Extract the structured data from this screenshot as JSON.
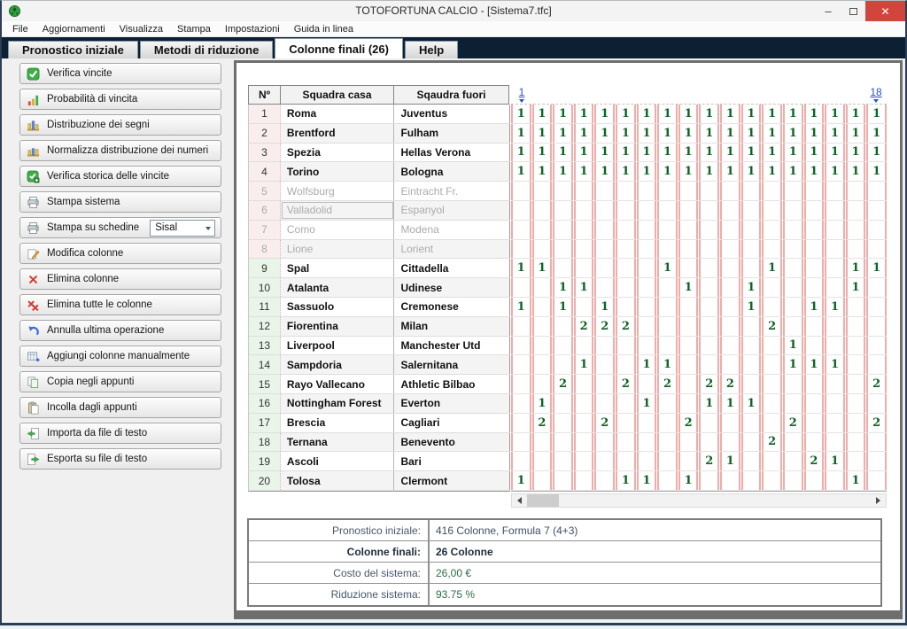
{
  "window": {
    "title": "TOTOFORTUNA CALCIO - [Sistema7.tfc]",
    "controls": {
      "minimize": "–",
      "close": "✕"
    }
  },
  "menu": {
    "items": [
      "File",
      "Aggiornamenti",
      "Visualizza",
      "Stampa",
      "Impostazioni",
      "Guida in linea"
    ]
  },
  "tabs": [
    {
      "label": "Pronostico iniziale",
      "active": false
    },
    {
      "label": "Metodi di riduzione",
      "active": false
    },
    {
      "label": "Colonne finali (26)",
      "active": true
    },
    {
      "label": "Help",
      "active": false
    }
  ],
  "sidebar": {
    "buttons": [
      {
        "label": "Verifica vincite",
        "icon": "check-icon"
      },
      {
        "label": "Probabilità di vincita",
        "icon": "bar-chart-icon"
      },
      {
        "label": "Distribuzione dei segni",
        "icon": "distribution-chart-icon"
      },
      {
        "label": "Normalizza distribuzione dei numeri",
        "icon": "normalize-chart-icon"
      },
      {
        "label": "Verifica storica delle vincite",
        "icon": "historic-check-icon"
      },
      {
        "label": "Stampa sistema",
        "icon": "printer-icon"
      },
      {
        "label": "Stampa su schedine",
        "icon": "printer-icon",
        "combo": "Sisal"
      },
      {
        "label": "Modifica colonne",
        "icon": "edit-icon"
      },
      {
        "label": "Elimina colonne",
        "icon": "delete-icon"
      },
      {
        "label": "Elimina tutte le colonne",
        "icon": "delete-all-icon"
      },
      {
        "label": "Annulla ultima operazione",
        "icon": "undo-icon"
      },
      {
        "label": "Aggiungi colonne manualmente",
        "icon": "add-columns-icon"
      },
      {
        "label": "Copia negli appunti",
        "icon": "copy-icon"
      },
      {
        "label": "Incolla dagli appunti",
        "icon": "paste-icon"
      },
      {
        "label": "Importa da file di testo",
        "icon": "import-icon"
      },
      {
        "label": "Esporta su file di testo",
        "icon": "export-icon"
      }
    ]
  },
  "table": {
    "headers": {
      "num": "Nº",
      "home": "Squadra casa",
      "away": "Sqaudra fuori"
    },
    "col_first": "1",
    "col_last": "18",
    "rows": [
      {
        "num": "1",
        "home": "Roma",
        "away": "Juventus",
        "dimmed": false,
        "zone": "pink",
        "cells": [
          "1",
          "1",
          "1",
          "1",
          "1",
          "1",
          "1",
          "1",
          "1",
          "1",
          "1",
          "1",
          "1",
          "1",
          "1",
          "1",
          "1",
          "1"
        ]
      },
      {
        "num": "2",
        "home": "Brentford",
        "away": "Fulham",
        "dimmed": false,
        "zone": "pink",
        "cells": [
          "1",
          "1",
          "1",
          "1",
          "1",
          "1",
          "1",
          "1",
          "1",
          "1",
          "1",
          "1",
          "1",
          "1",
          "1",
          "1",
          "1",
          "1"
        ]
      },
      {
        "num": "3",
        "home": "Spezia",
        "away": "Hellas Verona",
        "dimmed": false,
        "zone": "pink",
        "cells": [
          "1",
          "1",
          "1",
          "1",
          "1",
          "1",
          "1",
          "1",
          "1",
          "1",
          "1",
          "1",
          "1",
          "1",
          "1",
          "1",
          "1",
          "1"
        ]
      },
      {
        "num": "4",
        "home": "Torino",
        "away": "Bologna",
        "dimmed": false,
        "zone": "pink",
        "cells": [
          "1",
          "1",
          "1",
          "1",
          "1",
          "1",
          "1",
          "1",
          "1",
          "1",
          "1",
          "1",
          "1",
          "1",
          "1",
          "1",
          "1",
          "1"
        ]
      },
      {
        "num": "5",
        "home": "Wolfsburg",
        "away": "Eintracht Fr.",
        "dimmed": true,
        "zone": "pink",
        "cells": [
          "",
          "",
          "",
          "",
          "",
          "",
          "",
          "",
          "",
          "",
          "",
          "",
          "",
          "",
          "",
          "",
          "",
          ""
        ]
      },
      {
        "num": "6",
        "home": "Valladolid",
        "away": "Espanyol",
        "dimmed": true,
        "zone": "pink",
        "focused": true,
        "cells": [
          "",
          "",
          "",
          "",
          "",
          "",
          "",
          "",
          "",
          "",
          "",
          "",
          "",
          "",
          "",
          "",
          "",
          ""
        ]
      },
      {
        "num": "7",
        "home": "Como",
        "away": "Modena",
        "dimmed": true,
        "zone": "pink",
        "cells": [
          "",
          "",
          "",
          "",
          "",
          "",
          "",
          "",
          "",
          "",
          "",
          "",
          "",
          "",
          "",
          "",
          "",
          ""
        ]
      },
      {
        "num": "8",
        "home": "Lione",
        "away": "Lorient",
        "dimmed": true,
        "zone": "pink",
        "cells": [
          "",
          "",
          "",
          "",
          "",
          "",
          "",
          "",
          "",
          "",
          "",
          "",
          "",
          "",
          "",
          "",
          "",
          ""
        ]
      },
      {
        "num": "9",
        "home": "Spal",
        "away": "Cittadella",
        "dimmed": false,
        "zone": "green",
        "cells": [
          "1",
          "1",
          "",
          "",
          "",
          "",
          "",
          "1",
          "",
          "",
          "",
          "",
          "1",
          "",
          "",
          "",
          "1",
          "1"
        ]
      },
      {
        "num": "10",
        "home": "Atalanta",
        "away": "Udinese",
        "dimmed": false,
        "zone": "green",
        "cells": [
          "",
          "",
          "1",
          "1",
          "",
          "",
          "",
          "",
          "1",
          "",
          "",
          "1",
          "",
          "",
          "",
          "",
          "1",
          ""
        ]
      },
      {
        "num": "11",
        "home": "Sassuolo",
        "away": "Cremonese",
        "dimmed": false,
        "zone": "green",
        "cells": [
          "1",
          "",
          "1",
          "",
          "1",
          "",
          "",
          "",
          "",
          "",
          "",
          "1",
          "",
          "",
          "1",
          "1",
          "",
          ""
        ]
      },
      {
        "num": "12",
        "home": "Fiorentina",
        "away": "Milan",
        "dimmed": false,
        "zone": "green",
        "cells": [
          "",
          "",
          "",
          "2",
          "2",
          "2",
          "",
          "",
          "",
          "",
          "",
          "",
          "2",
          "",
          "",
          "",
          "",
          ""
        ]
      },
      {
        "num": "13",
        "home": "Liverpool",
        "away": "Manchester Utd",
        "dimmed": false,
        "zone": "green",
        "cells": [
          "",
          "",
          "",
          "",
          "",
          "",
          "",
          "",
          "",
          "",
          "",
          "",
          "",
          "1",
          "",
          "",
          "",
          ""
        ]
      },
      {
        "num": "14",
        "home": "Sampdoria",
        "away": "Salernitana",
        "dimmed": false,
        "zone": "green",
        "cells": [
          "",
          "",
          "",
          "1",
          "",
          "",
          "1",
          "1",
          "",
          "",
          "",
          "",
          "",
          "1",
          "1",
          "1",
          "",
          ""
        ]
      },
      {
        "num": "15",
        "home": "Rayo Vallecano",
        "away": "Athletic Bilbao",
        "dimmed": false,
        "zone": "green",
        "cells": [
          "",
          "",
          "2",
          "",
          "",
          "2",
          "",
          "2",
          "",
          "2",
          "2",
          "",
          "",
          "",
          "",
          "",
          "",
          "2"
        ]
      },
      {
        "num": "16",
        "home": "Nottingham Forest",
        "away": "Everton",
        "dimmed": false,
        "zone": "green",
        "cells": [
          "",
          "1",
          "",
          "",
          "",
          "",
          "1",
          "",
          "",
          "1",
          "1",
          "1",
          "",
          "",
          "",
          "",
          "",
          ""
        ]
      },
      {
        "num": "17",
        "home": "Brescia",
        "away": "Cagliari",
        "dimmed": false,
        "zone": "green",
        "cells": [
          "",
          "2",
          "",
          "",
          "2",
          "",
          "",
          "",
          "2",
          "",
          "",
          "",
          "",
          "2",
          "",
          "",
          "",
          "2"
        ]
      },
      {
        "num": "18",
        "home": "Ternana",
        "away": "Benevento",
        "dimmed": false,
        "zone": "green",
        "cells": [
          "",
          "",
          "",
          "",
          "",
          "",
          "",
          "",
          "",
          "",
          "",
          "",
          "2",
          "",
          "",
          "",
          "",
          ""
        ]
      },
      {
        "num": "19",
        "home": "Ascoli",
        "away": "Bari",
        "dimmed": false,
        "zone": "green",
        "cells": [
          "",
          "",
          "",
          "",
          "",
          "",
          "",
          "",
          "",
          "2",
          "1",
          "",
          "",
          "",
          "2",
          "1",
          "",
          ""
        ]
      },
      {
        "num": "20",
        "home": "Tolosa",
        "away": "Clermont",
        "dimmed": false,
        "zone": "green",
        "cells": [
          "1",
          "",
          "",
          "",
          "",
          "1",
          "1",
          "",
          "1",
          "",
          "",
          "",
          "",
          "",
          "",
          "",
          "1",
          ""
        ]
      }
    ]
  },
  "summary": {
    "rows": [
      {
        "label": "Pronostico iniziale:",
        "value": "416 Colonne, Formula 7 (4+3)",
        "bold": false,
        "green": false
      },
      {
        "label": "Colonne finali:",
        "value": "26 Colonne",
        "bold": true,
        "green": false
      },
      {
        "label": "Costo del sistema:",
        "value": "26,00 €",
        "bold": false,
        "green": true
      },
      {
        "label": "Riduzione sistema:",
        "value": "93.75 %",
        "bold": false,
        "green": true
      }
    ]
  }
}
